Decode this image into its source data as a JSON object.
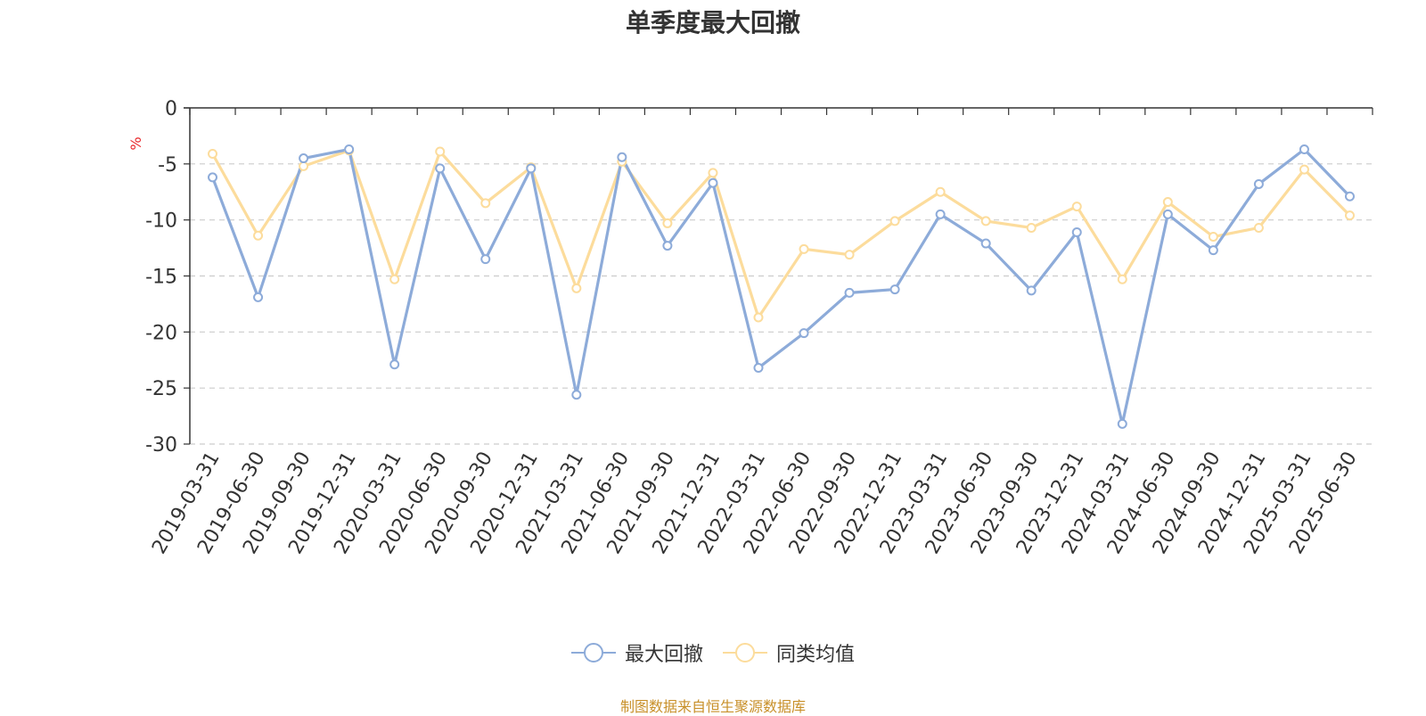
{
  "chart_data": {
    "type": "line",
    "title": "单季度最大回撤",
    "ylabel": "%",
    "ylim": [
      -30,
      0
    ],
    "yticks": [
      0,
      -5,
      -10,
      -15,
      -20,
      -25,
      -30
    ],
    "grid": true,
    "legend_position": "bottom",
    "categories": [
      "2019-03-31",
      "2019-06-30",
      "2019-09-30",
      "2019-12-31",
      "2020-03-31",
      "2020-06-30",
      "2020-09-30",
      "2020-12-31",
      "2021-03-31",
      "2021-06-30",
      "2021-09-30",
      "2021-12-31",
      "2022-03-31",
      "2022-06-30",
      "2022-09-30",
      "2022-12-31",
      "2023-03-31",
      "2023-06-30",
      "2023-09-30",
      "2023-12-31",
      "2024-03-31",
      "2024-06-30",
      "2024-09-30",
      "2024-12-31",
      "2025-03-31",
      "2025-06-30"
    ],
    "series": [
      {
        "name": "最大回撤",
        "color": "#8dabd9",
        "values": [
          -6.2,
          -16.9,
          -4.5,
          -3.7,
          -22.9,
          -5.4,
          -13.5,
          -5.4,
          -25.6,
          -4.4,
          -12.3,
          -6.7,
          -23.2,
          -20.1,
          -16.5,
          -16.2,
          -9.5,
          -12.1,
          -16.3,
          -11.1,
          -28.2,
          -9.5,
          -12.7,
          -6.8,
          -3.7,
          -7.9
        ]
      },
      {
        "name": "同类均值",
        "color": "#fcdc9c",
        "values": [
          -4.1,
          -11.4,
          -5.2,
          -3.8,
          -15.3,
          -3.9,
          -8.5,
          -5.3,
          -16.1,
          -4.8,
          -10.3,
          -5.8,
          -18.7,
          -12.6,
          -13.1,
          -10.1,
          -7.5,
          -10.1,
          -10.7,
          -8.8,
          -15.3,
          -8.4,
          -11.5,
          -10.7,
          -5.5,
          -9.6
        ]
      }
    ]
  },
  "footer": {
    "source": "制图数据来自恒生聚源数据库"
  }
}
